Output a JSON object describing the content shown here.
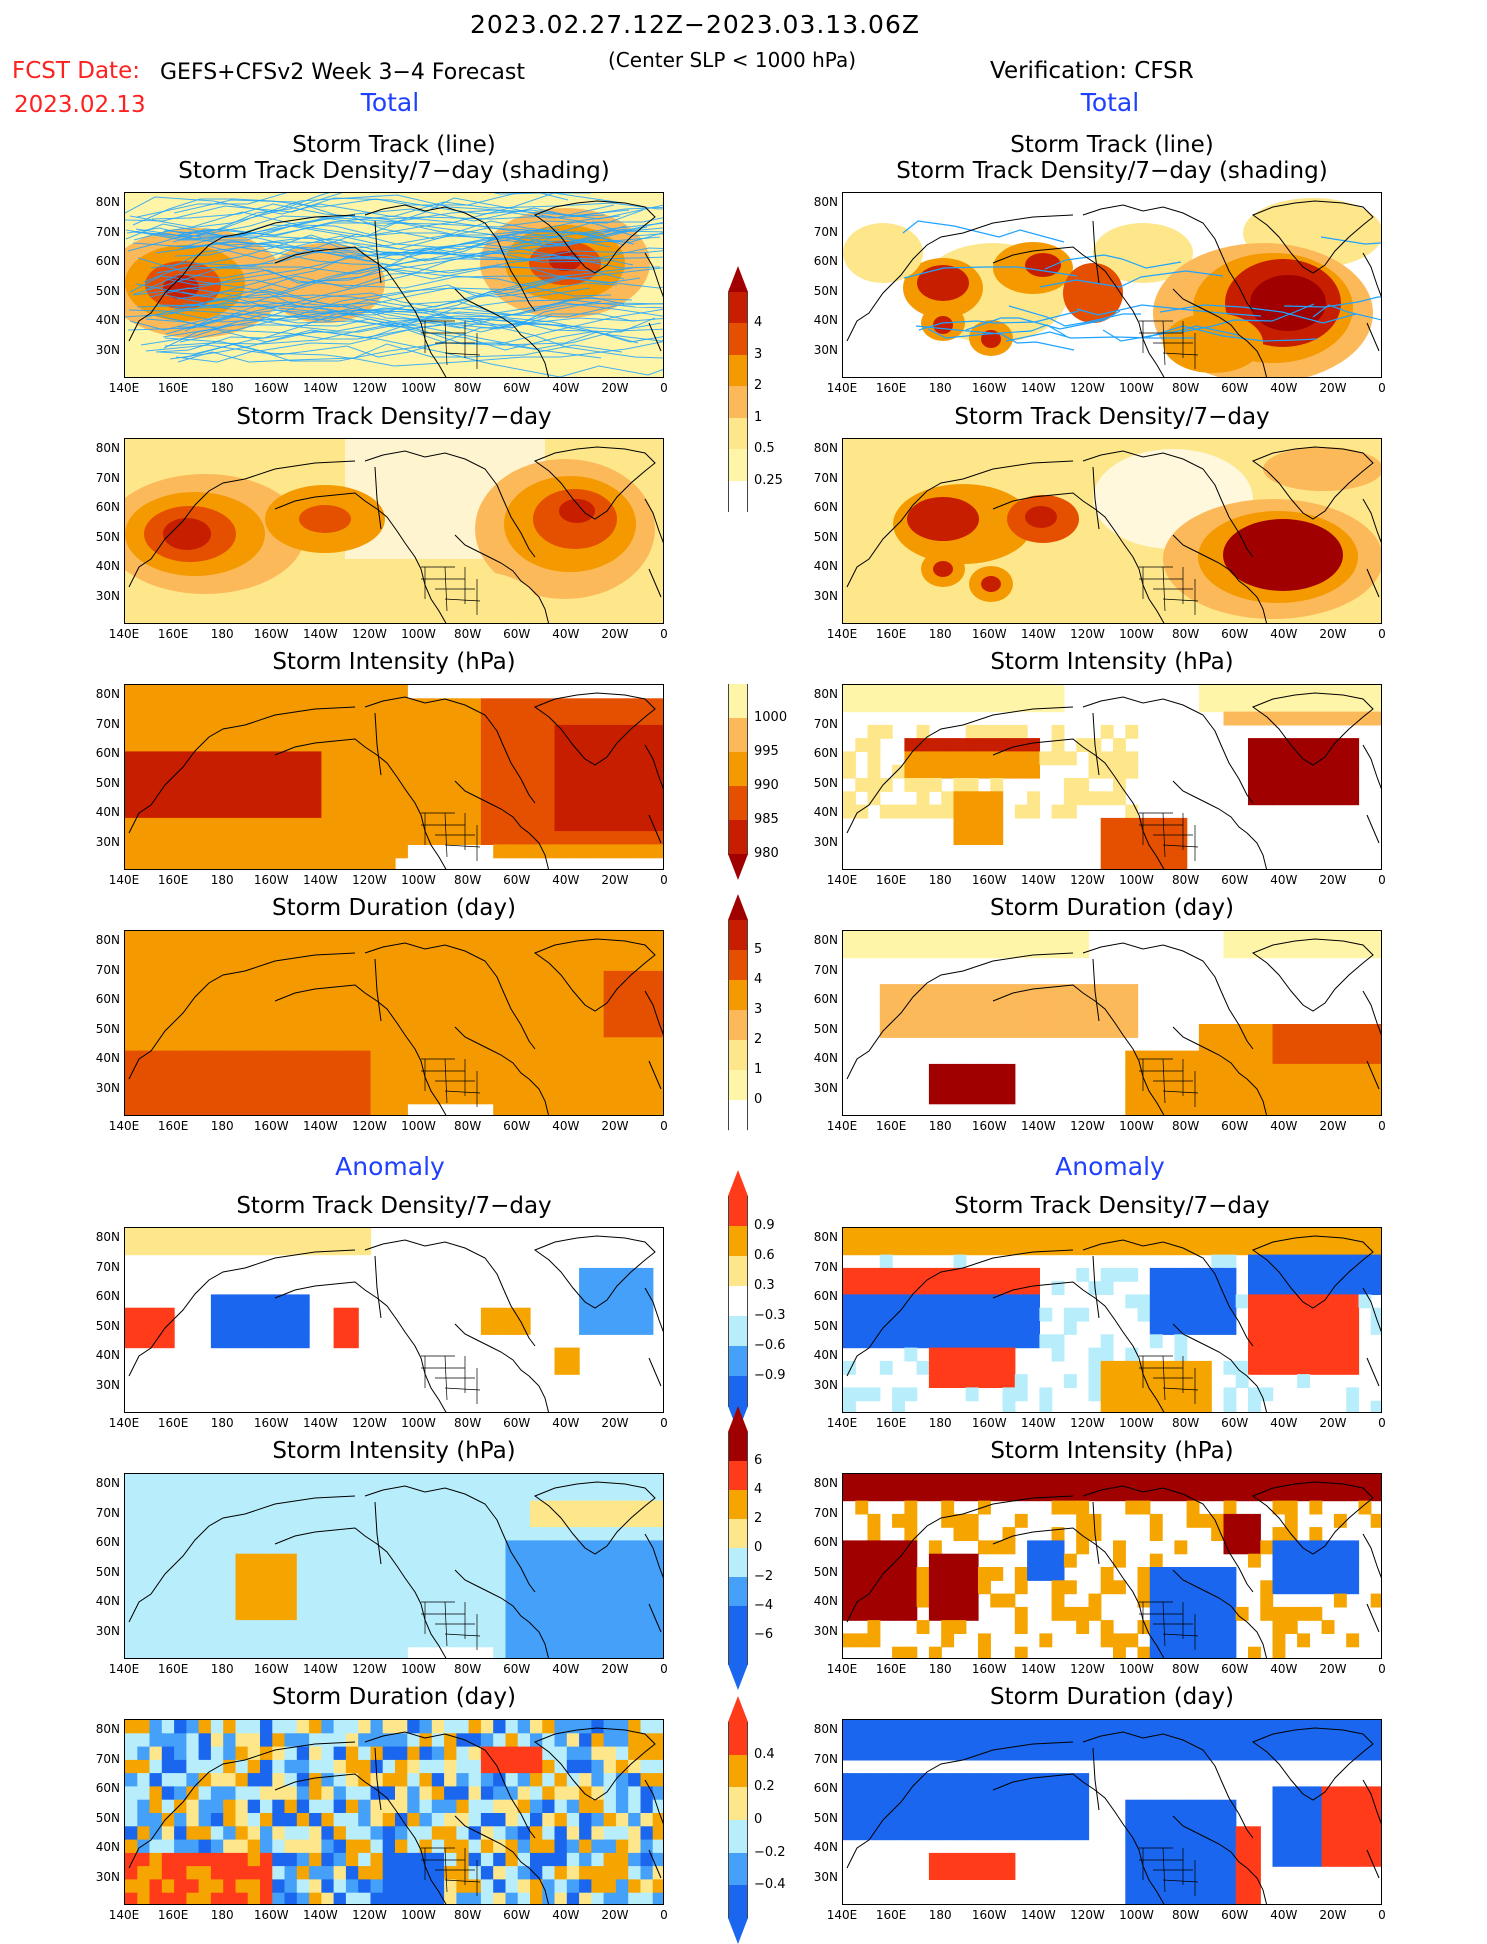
{
  "header": {
    "date_range": "2023.02.27.12Z−2023.03.13.06Z",
    "fcst_label": "FCST Date:",
    "fcst_date": "2023.02.13",
    "model": "GEFS+CFSv2 Week 3−4 Forecast",
    "criteria": "(Center SLP < 1000 hPa)",
    "verification": "Verification: CFSR"
  },
  "section_labels": {
    "total_left": "Total",
    "total_right": "Total",
    "anomaly_left": "Anomaly",
    "anomaly_right": "Anomaly"
  },
  "axes": {
    "lat_labels": [
      "80N",
      "70N",
      "60N",
      "50N",
      "40N",
      "30N"
    ],
    "lon_labels": [
      "140E",
      "160E",
      "180",
      "160W",
      "140W",
      "120W",
      "100W",
      "80W",
      "60W",
      "40W",
      "20W",
      "0"
    ]
  },
  "panels": {
    "r1": {
      "title_a": "Storm Track (line)",
      "title_b": "Storm Track Density/7−day (shading)"
    },
    "r2": {
      "title": "Storm Track Density/7−day"
    },
    "r3": {
      "title": "Storm Intensity (hPa)"
    },
    "r4": {
      "title": "Storm Duration (day)"
    },
    "r5": {
      "title": "Storm Track Density/7−day"
    },
    "r6": {
      "title": "Storm Intensity (hPa)"
    },
    "r7": {
      "title": "Storm Duration (day)"
    }
  },
  "colorbars": {
    "density": {
      "labels": [
        "4",
        "3",
        "2",
        "1",
        "0.5",
        "0.25"
      ]
    },
    "intensity": {
      "labels": [
        "1000",
        "995",
        "990",
        "985",
        "980"
      ]
    },
    "duration": {
      "labels": [
        "5",
        "4",
        "3",
        "2",
        "1",
        "0"
      ]
    },
    "density_anom": {
      "labels": [
        "0.9",
        "0.6",
        "0.3",
        "−0.3",
        "−0.6",
        "−0.9"
      ]
    },
    "intensity_anom": {
      "labels": [
        "6",
        "4",
        "2",
        "0",
        "−2",
        "−4",
        "−6"
      ]
    },
    "duration_anom": {
      "labels": [
        "0.4",
        "0.2",
        "0",
        "−0.2",
        "−0.4"
      ]
    }
  },
  "colors": {
    "warm_scale": [
      "#fff5a8",
      "#fde78a",
      "#fcb95a",
      "#f49a00",
      "#e45000",
      "#c81e00",
      "#a00000"
    ],
    "anomaly_scale": [
      "#1a66ee",
      "#44a0f8",
      "#b8eefc",
      "#ffffff",
      "#fde78a",
      "#f5a400",
      "#ff3b1a",
      "#a00000"
    ],
    "track_line": "#1fa3ff"
  }
}
